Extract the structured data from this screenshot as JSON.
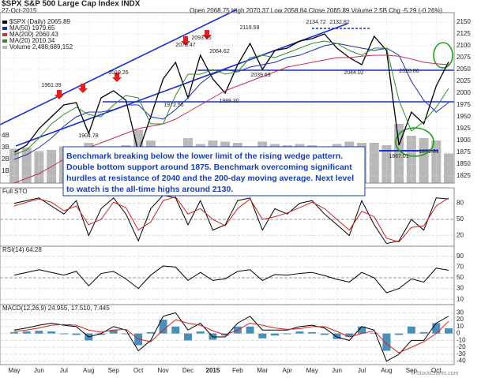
{
  "chart_data": [
    {
      "type": "line",
      "title": "$SPX S&P 500 Large Cap Index INDX",
      "date": "27-Oct-2015",
      "quote": "Open 2068.75  High 2070.37  Low 2058.84  Close 2065.89  Volume 2.5B  Chg -5.29 (-0.26%)",
      "watermark": "© StockCharts.com",
      "annotation": [
        "Benchmark breaking below the lower limit of the rising wedge pattern.",
        "Double bottom support around 1875. Benchmark overcoming significant",
        "hurdles at resistance of 2040 and the 200-day moving average.  Next level",
        "to watch is the all-time highs around 2130."
      ],
      "categories": [
        "May",
        null,
        "Jun",
        null,
        "Jul",
        null,
        "Aug",
        null,
        "Sep",
        null,
        "Oct",
        null,
        "Nov",
        null,
        "Dec",
        null,
        "2015",
        null,
        "Feb",
        null,
        "Mar",
        null,
        "Apr",
        null,
        "May",
        null,
        "Jun",
        null,
        "Jul",
        null,
        "Aug",
        null,
        "Sep",
        null,
        "Oct",
        null
      ],
      "series": [
        {
          "name": "$SPX (Daily) 2065.89",
          "color": "#000000",
          "values": [
            1875,
            1890,
            1925,
            1950,
            1975,
            1980,
            1915,
            1990,
            2005,
            1985,
            1875,
            1950,
            2030,
            2065,
            1990,
            2080,
            2030,
            2000,
            2060,
            2105,
            2050,
            2090,
            2095,
            2110,
            2115,
            2125,
            2095,
            2075,
            2060,
            2120,
            2090,
            1890,
            1960,
            1935,
            2015,
            2066
          ]
        },
        {
          "name": "MA(50) 1979.65",
          "color": "#1f2fa8",
          "values": [
            1860,
            1870,
            1885,
            1905,
            1930,
            1950,
            1960,
            1960,
            1965,
            1975,
            1975,
            1950,
            1945,
            1965,
            1990,
            2020,
            2040,
            2050,
            2045,
            2055,
            2060,
            2065,
            2075,
            2080,
            2090,
            2100,
            2105,
            2100,
            2095,
            2090,
            2095,
            2080,
            2025,
            1985,
            1960,
            1980
          ]
        },
        {
          "name": "MA(200) 2060.43",
          "color": "#c0304a",
          "values": [
            1810,
            1820,
            1830,
            1845,
            1860,
            1875,
            1885,
            1895,
            1905,
            1915,
            1925,
            1930,
            1935,
            1945,
            1960,
            1975,
            1990,
            2005,
            2015,
            2025,
            2035,
            2045,
            2055,
            2060,
            2065,
            2070,
            2075,
            2075,
            2078,
            2080,
            2080,
            2078,
            2072,
            2065,
            2062,
            2060
          ]
        },
        {
          "name": "MA(20) 2010.34",
          "color": "#2e8b2e",
          "values": [
            1870,
            1880,
            1905,
            1935,
            1955,
            1970,
            1955,
            1950,
            1975,
            1995,
            1990,
            1935,
            1935,
            1995,
            2040,
            2040,
            2050,
            2040,
            2045,
            2075,
            2080,
            2075,
            2085,
            2095,
            2105,
            2110,
            2105,
            2090,
            2080,
            2095,
            2095,
            1985,
            1920,
            1940,
            1970,
            2010
          ]
        }
      ],
      "volume": {
        "name": "Volume 2,488,689,152",
        "color": "#b8b8b8",
        "values": [
          2.9,
          3.0,
          2.7,
          2.8,
          3.1,
          3.0,
          3.4,
          2.9,
          3.0,
          3.2,
          4.5,
          3.6,
          3.0,
          2.8,
          3.8,
          3.3,
          3.6,
          3.5,
          3.4,
          3.0,
          3.5,
          3.3,
          3.2,
          3.3,
          3.2,
          3.1,
          3.3,
          3.5,
          3.4,
          3.4,
          3.2,
          5.0,
          4.0,
          3.8,
          3.6,
          2.5
        ]
      },
      "ylim": [
        1810,
        2160
      ],
      "yticks": [
        1825,
        1850,
        1875,
        1900,
        1925,
        1950,
        1975,
        2000,
        2025,
        2050,
        2075,
        2100,
        2125,
        2150
      ],
      "y2lim": [
        0,
        14
      ],
      "y2ticks": [
        {
          "value": 1,
          "label": "1B"
        },
        {
          "value": 2,
          "label": "2B"
        },
        {
          "value": 3,
          "label": "3B"
        },
        {
          "value": 4,
          "label": "4B"
        }
      ],
      "price_labels": [
        "1961.39",
        "2019.26",
        "1904.78",
        "2079.47",
        "2093.55",
        "1972.56",
        "1988.30",
        "2064.62",
        "2119.59",
        "2039.69",
        "2134.72",
        "2132.82",
        "2044.02",
        "2020.86",
        "1867.01",
        "1871.31"
      ],
      "grid": true
    },
    {
      "type": "line",
      "label": "Full STO",
      "ylim": [
        0,
        100
      ],
      "yticks": [
        20,
        50,
        80
      ],
      "grid": true,
      "series": [
        {
          "color": "#000000",
          "values": [
            80,
            85,
            90,
            75,
            60,
            85,
            20,
            70,
            90,
            60,
            10,
            70,
            95,
            90,
            40,
            85,
            30,
            40,
            85,
            90,
            30,
            70,
            60,
            80,
            85,
            60,
            40,
            20,
            85,
            40,
            5,
            10,
            50,
            30,
            90,
            88
          ]
        },
        {
          "color": "#d02020",
          "values": [
            75,
            82,
            88,
            82,
            66,
            75,
            40,
            50,
            82,
            72,
            30,
            45,
            85,
            92,
            60,
            70,
            50,
            38,
            70,
            88,
            50,
            55,
            62,
            72,
            82,
            70,
            50,
            30,
            65,
            55,
            15,
            8,
            35,
            38,
            75,
            90
          ]
        }
      ]
    },
    {
      "type": "line",
      "label": "RSI(14) 64.28",
      "ylim": [
        0,
        100
      ],
      "yticks": [
        10,
        30,
        50,
        70,
        90
      ],
      "grid": true,
      "series": [
        {
          "color": "#000000",
          "values": [
            55,
            60,
            65,
            60,
            55,
            62,
            35,
            58,
            62,
            48,
            30,
            55,
            72,
            70,
            45,
            60,
            45,
            48,
            62,
            65,
            45,
            56,
            55,
            58,
            60,
            54,
            47,
            42,
            60,
            50,
            22,
            30,
            48,
            42,
            68,
            64
          ]
        }
      ]
    },
    {
      "type": "line",
      "label": "MACD(12,26,9) 24.955, 17.510, 7.445",
      "ylim": [
        -45,
        35
      ],
      "yticks": [
        -40,
        -30,
        -20,
        -10,
        0,
        10,
        20,
        30
      ],
      "grid": true,
      "series": [
        {
          "color": "#000000",
          "values": [
            5,
            8,
            12,
            15,
            12,
            10,
            -5,
            0,
            10,
            5,
            -25,
            -10,
            25,
            30,
            5,
            15,
            -5,
            -5,
            15,
            25,
            5,
            5,
            5,
            10,
            12,
            8,
            -5,
            -10,
            10,
            5,
            -40,
            -30,
            -10,
            -10,
            15,
            25
          ]
        },
        {
          "color": "#d02020",
          "values": [
            3,
            5,
            8,
            12,
            13,
            12,
            5,
            2,
            5,
            6,
            -8,
            -12,
            5,
            20,
            15,
            12,
            4,
            -2,
            5,
            15,
            12,
            8,
            6,
            7,
            10,
            10,
            3,
            -5,
            0,
            4,
            -15,
            -28,
            -20,
            -12,
            0,
            17.5
          ]
        }
      ],
      "histogram": {
        "color": "#4a8fb8",
        "values": [
          2,
          3,
          4,
          3,
          -1,
          -2,
          -10,
          -2,
          5,
          -1,
          -17,
          2,
          20,
          10,
          -10,
          3,
          -9,
          -3,
          10,
          10,
          -7,
          -3,
          -1,
          3,
          2,
          -2,
          -8,
          -5,
          10,
          1,
          -25,
          -2,
          10,
          2,
          15,
          7.5
        ]
      }
    }
  ]
}
